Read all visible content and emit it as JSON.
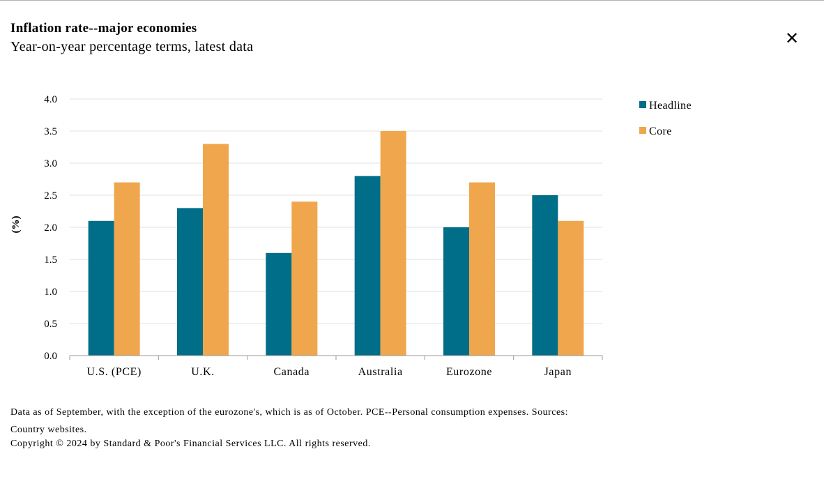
{
  "header": {
    "title": "Inflation rate--major economies",
    "subtitle": "Year-on-year percentage terms, latest data"
  },
  "close_icon": "close-icon",
  "colors": {
    "headline": "#006D89",
    "core": "#F0A64C",
    "grid": "#e0e0e0",
    "axis": "#999999"
  },
  "chart_data": {
    "type": "bar",
    "title": "Inflation rate--major economies",
    "subtitle": "Year-on-year percentage terms, latest data",
    "xlabel": "",
    "ylabel": "(%)",
    "ylim": [
      0,
      4
    ],
    "yticks": [
      "0.0",
      "0.5",
      "1.0",
      "1.5",
      "2.0",
      "2.5",
      "3.0",
      "3.5",
      "4.0"
    ],
    "categories": [
      "U.S. (PCE)",
      "U.K.",
      "Canada",
      "Australia",
      "Eurozone",
      "Japan"
    ],
    "series": [
      {
        "name": "Headline",
        "values": [
          2.1,
          2.3,
          1.6,
          2.8,
          2.0,
          2.5
        ]
      },
      {
        "name": "Core",
        "values": [
          2.7,
          3.3,
          2.4,
          3.5,
          2.7,
          2.1
        ]
      }
    ],
    "grid": true,
    "legend": "right"
  },
  "footer": {
    "note": "Data as of September, with the exception of the eurozone's, which is as of October. PCE--Personal consumption expenses. Sources: Country websites.",
    "copyright": "Copyright © 2024 by Standard & Poor's Financial Services LLC. All rights reserved."
  }
}
